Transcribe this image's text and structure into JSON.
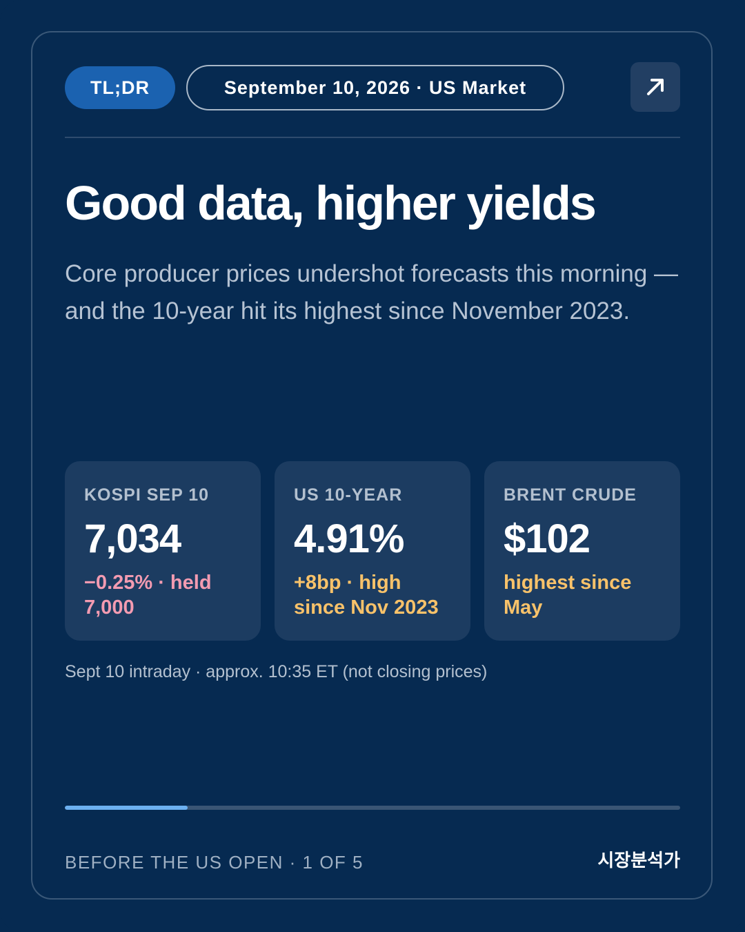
{
  "header": {
    "badge": "TL;DR",
    "date_pill": "September 10, 2026 · US Market",
    "open_icon": "arrow-up-right-icon"
  },
  "main": {
    "headline": "Good data, higher yields",
    "subline": "Core producer prices undershot forecasts this morning — and the 10-year hit its highest since November 2023."
  },
  "stats": [
    {
      "label": "KOSPI SEP 10",
      "value": "7,034",
      "note": "−0.25% · held 7,000",
      "note_color": "#f39bb1"
    },
    {
      "label": "US 10-YEAR",
      "value": "4.91%",
      "note": "+8bp · high since Nov 2023",
      "note_color": "#f8c26a"
    },
    {
      "label": "BRENT CRUDE",
      "value": "$102",
      "note": "highest since May",
      "note_color": "#f8c26a"
    }
  ],
  "timestamp": "Sept 10 intraday · approx. 10:35 ET (not closing prices)",
  "progress": {
    "current": 1,
    "total": 5
  },
  "footer": {
    "left": "BEFORE THE US OPEN · 1 OF 5",
    "brand": "시장분석가"
  },
  "colors": {
    "background": "#062a51",
    "accent": "#1b62b0",
    "progress": "#6cb0f0",
    "negative": "#f39bb1",
    "highlight": "#f8c26a"
  }
}
